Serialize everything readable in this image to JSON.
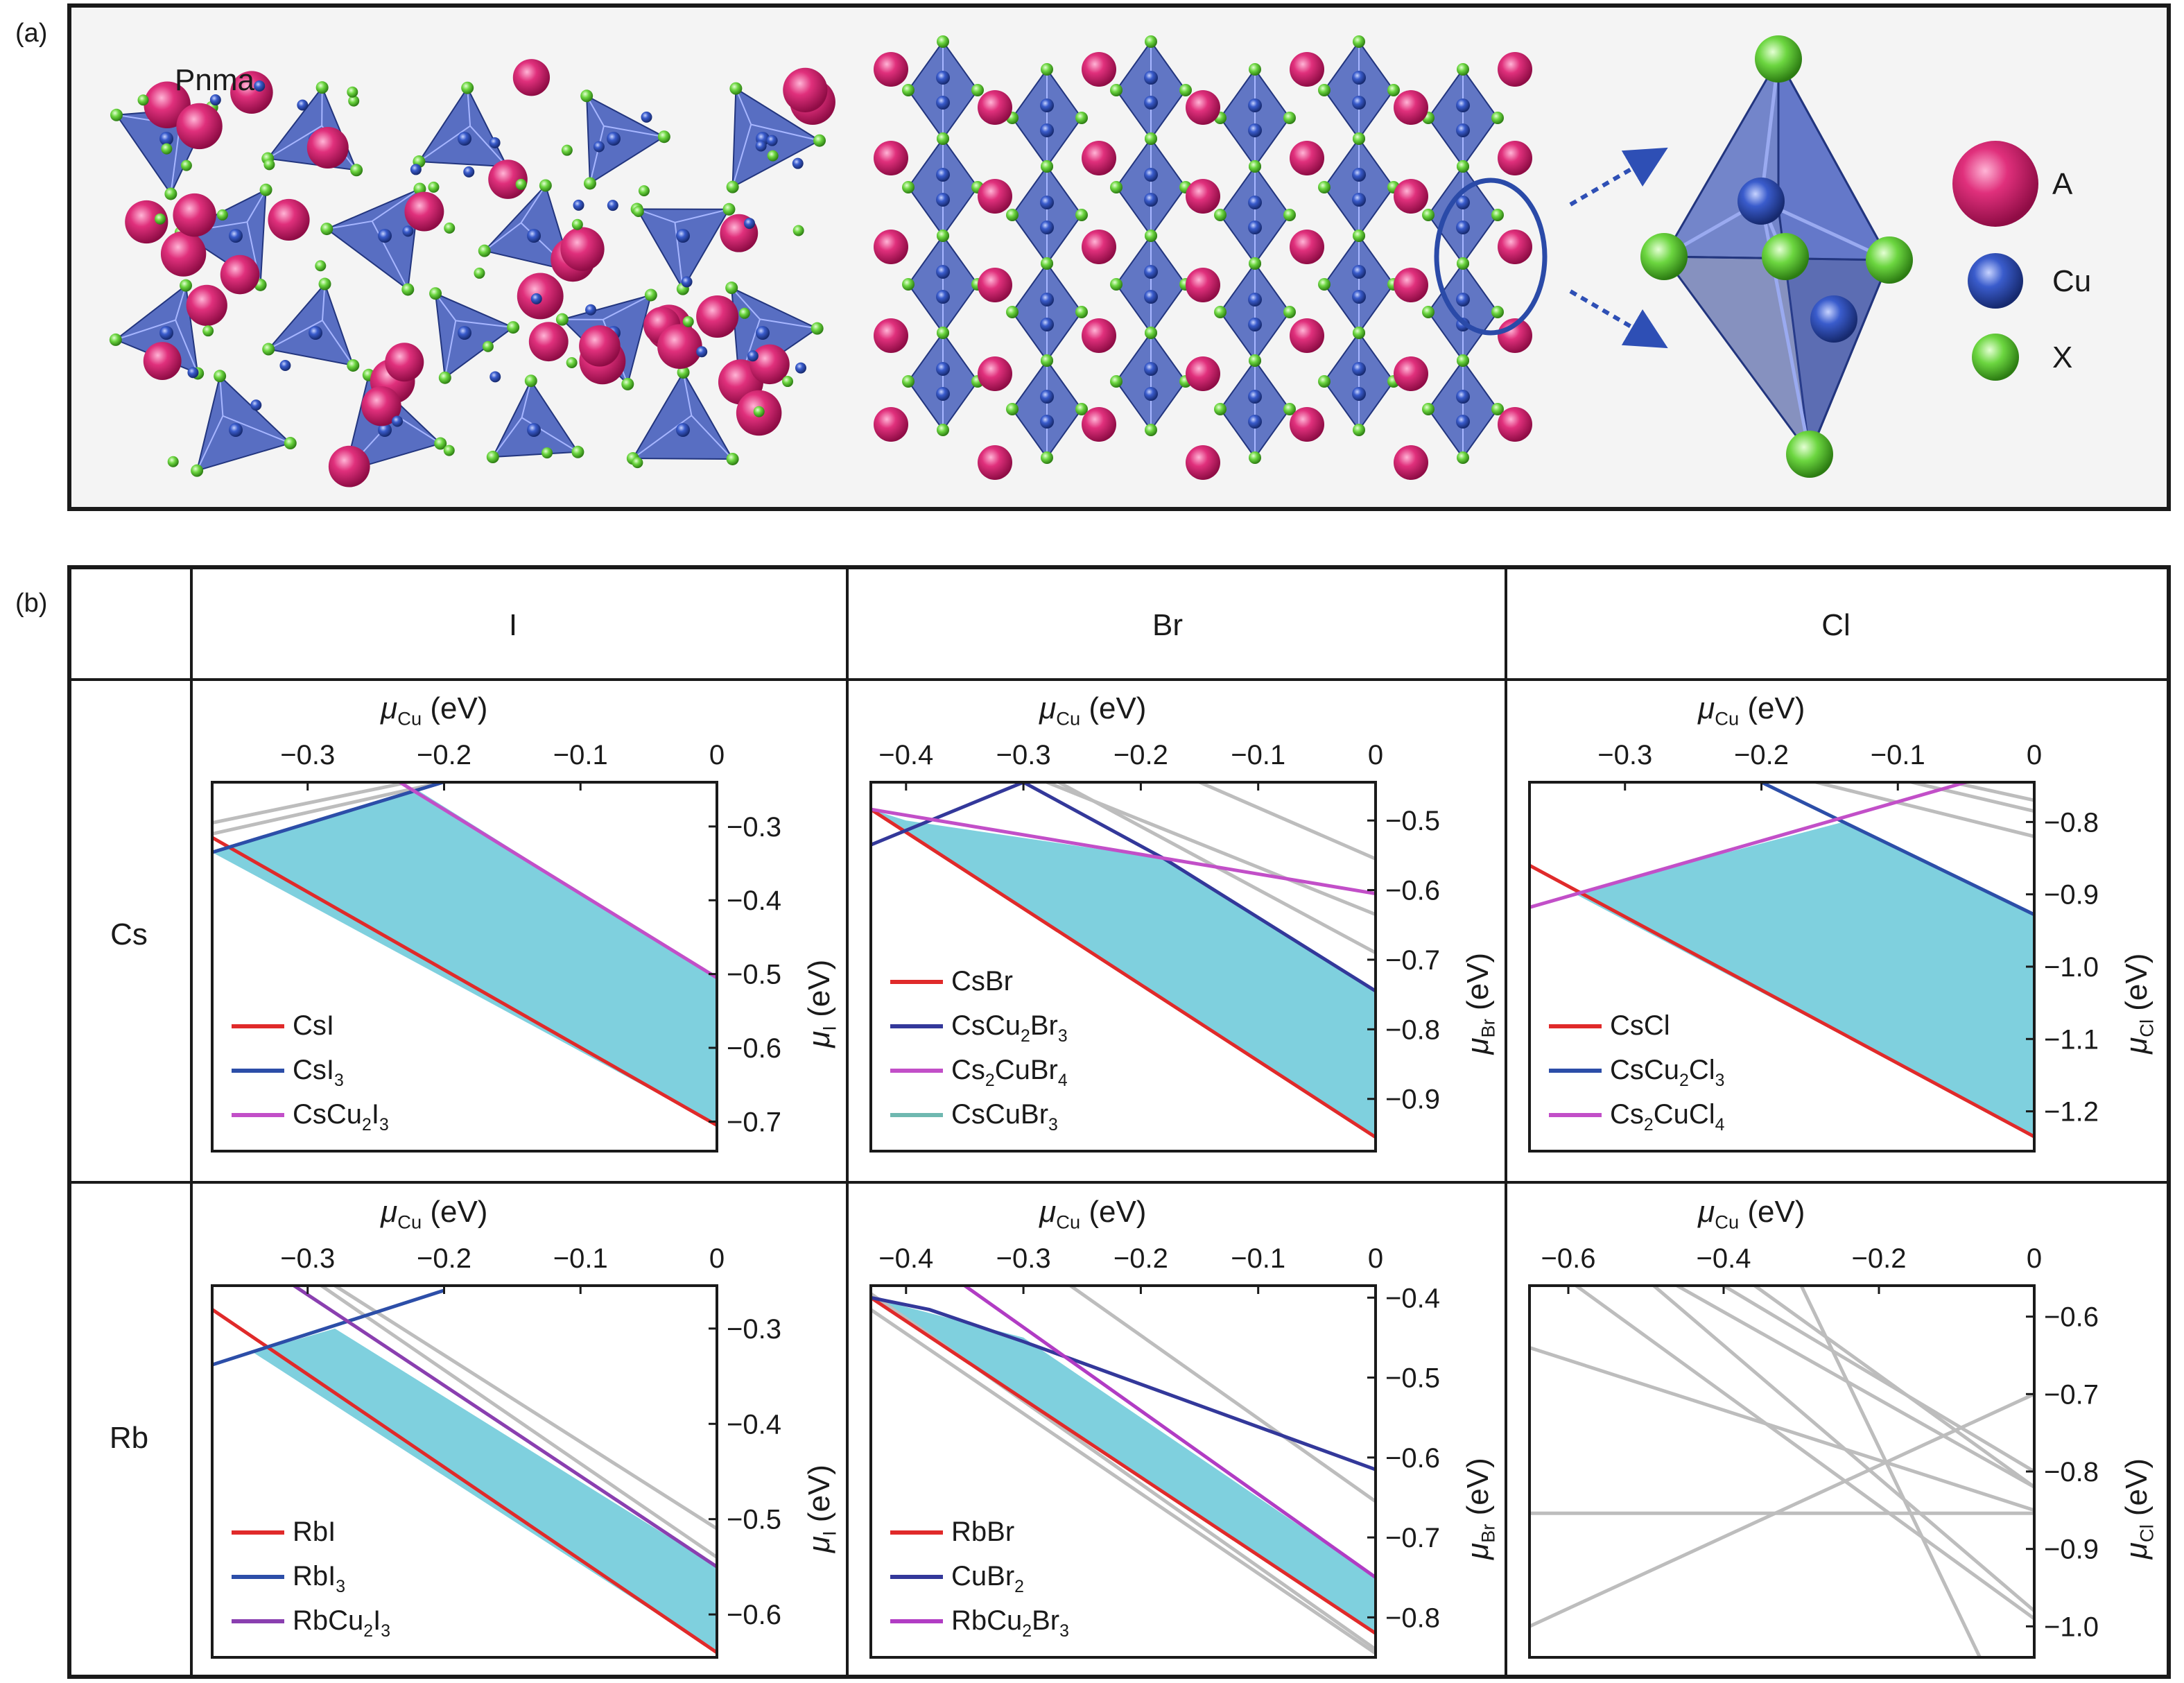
{
  "panel_a": {
    "label": "(a)",
    "space_group": "Pnma",
    "legend": [
      {
        "label": "A",
        "color": "#d6246e"
      },
      {
        "label": "Cu",
        "color": "#2e4fb5"
      },
      {
        "label": "X",
        "color": "#5fd23a"
      }
    ],
    "colors": {
      "polyhedron": "#3c56b8",
      "frame_bg": "#f4f4f4"
    }
  },
  "panel_b": {
    "label": "(b)",
    "columns": [
      "I",
      "Br",
      "Cl"
    ],
    "rows": [
      "Cs",
      "Rb"
    ],
    "fill_color": "#7fd0de"
  },
  "chart_data": [
    {
      "type": "area",
      "row": "Cs",
      "col": "I",
      "xlabel": {
        "sym": "μ",
        "sub": "Cu",
        "unit": " (eV)"
      },
      "ylabel": {
        "sym": "μ",
        "sub": "I",
        "unit": " (eV)"
      },
      "xlim": [
        -0.37,
        0
      ],
      "ylim": [
        -0.74,
        -0.24
      ],
      "xticks": [
        {
          "v": -0.3,
          "t": "−0.3"
        },
        {
          "v": -0.2,
          "t": "−0.2"
        },
        {
          "v": -0.1,
          "t": "−0.1"
        },
        {
          "v": 0,
          "t": "0"
        }
      ],
      "yticks": [
        {
          "v": -0.3,
          "t": "−0.3"
        },
        {
          "v": -0.4,
          "t": "−0.4"
        },
        {
          "v": -0.5,
          "t": "−0.5"
        },
        {
          "v": -0.6,
          "t": "−0.6"
        },
        {
          "v": -0.7,
          "t": "−0.7"
        }
      ],
      "region": [
        [
          -0.37,
          -0.335
        ],
        [
          -0.22,
          -0.25
        ],
        [
          0,
          -0.505
        ],
        [
          0,
          -0.705
        ]
      ],
      "series": [
        {
          "name": "CsI",
          "sub": "",
          "suffix": "",
          "color": "#e02a2a",
          "points": [
            [
              -0.37,
              -0.315
            ],
            [
              0,
              -0.705
            ]
          ]
        },
        {
          "name": "CsI",
          "sub": "3",
          "suffix": "",
          "color": "#2c4ea8",
          "points": [
            [
              -0.37,
              -0.335
            ],
            [
              -0.165,
              -0.22
            ]
          ]
        },
        {
          "name": "CsCu",
          "sub": "2",
          "suffix": "I",
          "sub2": "3",
          "color": "#c24fc8",
          "points": [
            [
              -0.25,
              -0.22
            ],
            [
              0,
              -0.505
            ]
          ]
        }
      ],
      "others": [
        [
          [
            -0.37,
            -0.31
          ],
          [
            -0.165,
            -0.225
          ]
        ],
        [
          [
            -0.37,
            -0.295
          ],
          [
            -0.2,
            -0.23
          ]
        ]
      ]
    },
    {
      "type": "area",
      "row": "Cs",
      "col": "Br",
      "xlabel": {
        "sym": "μ",
        "sub": "Cu",
        "unit": " (eV)"
      },
      "ylabel": {
        "sym": "μ",
        "sub": "Br",
        "unit": " (eV)"
      },
      "xlim": [
        -0.43,
        0
      ],
      "ylim": [
        -0.975,
        -0.445
      ],
      "xticks": [
        {
          "v": -0.4,
          "t": "−0.4"
        },
        {
          "v": -0.3,
          "t": "−0.3"
        },
        {
          "v": -0.2,
          "t": "−0.2"
        },
        {
          "v": -0.1,
          "t": "−0.1"
        },
        {
          "v": 0,
          "t": "0"
        }
      ],
      "yticks": [
        {
          "v": -0.5,
          "t": "−0.5"
        },
        {
          "v": -0.6,
          "t": "−0.6"
        },
        {
          "v": -0.7,
          "t": "−0.7"
        },
        {
          "v": -0.8,
          "t": "−0.8"
        },
        {
          "v": -0.9,
          "t": "−0.9"
        }
      ],
      "region": [
        [
          -0.43,
          -0.484
        ],
        [
          -0.4,
          -0.5
        ],
        [
          -0.18,
          -0.555
        ],
        [
          0,
          -0.745
        ],
        [
          0,
          -0.955
        ]
      ],
      "series": [
        {
          "name": "CsBr",
          "sub": "",
          "suffix": "",
          "color": "#e02a2a",
          "points": [
            [
              -0.43,
              -0.484
            ],
            [
              0,
              -0.955
            ]
          ]
        },
        {
          "name": "CsCu",
          "sub": "2",
          "suffix": "Br",
          "sub2": "3",
          "color": "#33389a",
          "points": [
            [
              -0.43,
              -0.535
            ],
            [
              -0.3,
              -0.445
            ],
            [
              -0.18,
              -0.555
            ],
            [
              0,
              -0.745
            ]
          ]
        },
        {
          "name": "Cs",
          "sub": "2",
          "suffix": "CuBr",
          "sub2": "4",
          "color": "#c24fc8",
          "points": [
            [
              -0.43,
              -0.484
            ],
            [
              0,
              -0.605
            ]
          ]
        },
        {
          "name": "CsCuBr",
          "sub": "3",
          "suffix": "",
          "color": "#6fb8b0",
          "points": []
        }
      ],
      "others": [
        [
          [
            -0.27,
            -0.445
          ],
          [
            0,
            -0.69
          ]
        ],
        [
          [
            -0.15,
            -0.445
          ],
          [
            0,
            -0.555
          ]
        ],
        [
          [
            -0.28,
            -0.445
          ],
          [
            0,
            -0.635
          ]
        ]
      ]
    },
    {
      "type": "area",
      "row": "Cs",
      "col": "Cl",
      "xlabel": {
        "sym": "μ",
        "sub": "Cu",
        "unit": " (eV)"
      },
      "ylabel": {
        "sym": "μ",
        "sub": "Cl",
        "unit": " (eV)"
      },
      "xlim": [
        -0.37,
        0
      ],
      "ylim": [
        -1.255,
        -0.745
      ],
      "xticks": [
        {
          "v": -0.3,
          "t": "−0.3"
        },
        {
          "v": -0.2,
          "t": "−0.2"
        },
        {
          "v": -0.1,
          "t": "−0.1"
        },
        {
          "v": 0,
          "t": "0"
        }
      ],
      "yticks": [
        {
          "v": -0.8,
          "t": "−0.8"
        },
        {
          "v": -0.9,
          "t": "−0.9"
        },
        {
          "v": -1.0,
          "t": "−1.0"
        },
        {
          "v": -1.1,
          "t": "−1.1"
        },
        {
          "v": -1.2,
          "t": "−1.2"
        }
      ],
      "region": [
        [
          -0.338,
          -0.898
        ],
        [
          -0.14,
          -0.8
        ],
        [
          0,
          -0.928
        ],
        [
          0,
          -1.235
        ]
      ],
      "series": [
        {
          "name": "CsCl",
          "sub": "",
          "suffix": "",
          "color": "#e02a2a",
          "points": [
            [
              -0.37,
              -0.86
            ],
            [
              0,
              -1.235
            ]
          ]
        },
        {
          "name": "CsCu",
          "sub": "2",
          "suffix": "Cl",
          "sub2": "3",
          "color": "#2c4ea8",
          "points": [
            [
              -0.2,
              -0.745
            ],
            [
              0,
              -0.928
            ]
          ]
        },
        {
          "name": "Cs",
          "sub": "2",
          "suffix": "CuCl",
          "sub2": "4",
          "color": "#c24fc8",
          "points": [
            [
              -0.37,
              -0.918
            ],
            [
              -0.05,
              -0.745
            ]
          ]
        }
      ],
      "others": [
        [
          [
            -0.16,
            -0.745
          ],
          [
            0,
            -0.82
          ]
        ],
        [
          [
            -0.09,
            -0.745
          ],
          [
            0,
            -0.785
          ]
        ],
        [
          [
            -0.06,
            -0.745
          ],
          [
            0,
            -0.77
          ]
        ]
      ]
    },
    {
      "type": "area",
      "row": "Rb",
      "col": "I",
      "xlabel": {
        "sym": "μ",
        "sub": "Cu",
        "unit": " (eV)"
      },
      "ylabel": {
        "sym": "μ",
        "sub": "I",
        "unit": " (eV)"
      },
      "xlim": [
        -0.37,
        0
      ],
      "ylim": [
        -0.645,
        -0.255
      ],
      "xticks": [
        {
          "v": -0.3,
          "t": "−0.3"
        },
        {
          "v": -0.2,
          "t": "−0.2"
        },
        {
          "v": -0.1,
          "t": "−0.1"
        },
        {
          "v": 0,
          "t": "0"
        }
      ],
      "yticks": [
        {
          "v": -0.3,
          "t": "−0.3"
        },
        {
          "v": -0.4,
          "t": "−0.4"
        },
        {
          "v": -0.5,
          "t": "−0.5"
        },
        {
          "v": -0.6,
          "t": "−0.6"
        }
      ],
      "region": [
        [
          -0.34,
          -0.325
        ],
        [
          -0.28,
          -0.3
        ],
        [
          0,
          -0.55
        ],
        [
          0,
          -0.64
        ]
      ],
      "series": [
        {
          "name": "RbI",
          "sub": "",
          "suffix": "",
          "color": "#e02a2a",
          "points": [
            [
              -0.37,
              -0.28
            ],
            [
              0,
              -0.64
            ]
          ]
        },
        {
          "name": "RbI",
          "sub": "3",
          "suffix": "",
          "color": "#2c4ea8",
          "points": [
            [
              -0.37,
              -0.338
            ],
            [
              -0.2,
              -0.26
            ]
          ]
        },
        {
          "name": "RbCu",
          "sub": "2",
          "suffix": "I",
          "sub2": "3",
          "color": "#8a3fb0",
          "points": [
            [
              -0.31,
              -0.255
            ],
            [
              0,
              -0.55
            ]
          ]
        }
      ],
      "others": [
        [
          [
            -0.28,
            -0.255
          ],
          [
            0,
            -0.51
          ]
        ],
        [
          [
            -0.29,
            -0.255
          ],
          [
            0,
            -0.54
          ]
        ]
      ]
    },
    {
      "type": "area",
      "row": "Rb",
      "col": "Br",
      "xlabel": {
        "sym": "μ",
        "sub": "Cu",
        "unit": " (eV)"
      },
      "ylabel": {
        "sym": "μ",
        "sub": "Br",
        "unit": " (eV)"
      },
      "xlim": [
        -0.43,
        0
      ],
      "ylim": [
        -0.85,
        -0.385
      ],
      "xticks": [
        {
          "v": -0.4,
          "t": "−0.4"
        },
        {
          "v": -0.3,
          "t": "−0.3"
        },
        {
          "v": -0.2,
          "t": "−0.2"
        },
        {
          "v": -0.1,
          "t": "−0.1"
        },
        {
          "v": 0,
          "t": "0"
        }
      ],
      "yticks": [
        {
          "v": -0.4,
          "t": "−0.4"
        },
        {
          "v": -0.5,
          "t": "−0.5"
        },
        {
          "v": -0.6,
          "t": "−0.6"
        },
        {
          "v": -0.7,
          "t": "−0.7"
        },
        {
          "v": -0.8,
          "t": "−0.8"
        }
      ],
      "region": [
        [
          -0.43,
          -0.4
        ],
        [
          -0.3,
          -0.45
        ],
        [
          0,
          -0.75
        ],
        [
          0,
          -0.82
        ]
      ],
      "series": [
        {
          "name": "RbBr",
          "sub": "",
          "suffix": "",
          "color": "#e02a2a",
          "points": [
            [
              -0.43,
              -0.4
            ],
            [
              0,
              -0.82
            ]
          ]
        },
        {
          "name": "CuBr",
          "sub": "2",
          "suffix": "",
          "color": "#33389a",
          "points": [
            [
              -0.43,
              -0.4
            ],
            [
              -0.38,
              -0.415
            ],
            [
              -0.3,
              -0.455
            ],
            [
              0,
              -0.615
            ]
          ]
        },
        {
          "name": "RbCu",
          "sub": "2",
          "suffix": "Br",
          "sub2": "3",
          "color": "#b13cc4",
          "points": [
            [
              -0.35,
              -0.385
            ],
            [
              0,
              -0.75
            ]
          ]
        }
      ],
      "others": [
        [
          [
            -0.43,
            -0.415
          ],
          [
            0,
            -0.845
          ]
        ],
        [
          [
            -0.26,
            -0.385
          ],
          [
            0,
            -0.655
          ]
        ],
        [
          [
            -0.43,
            -0.395
          ],
          [
            0,
            -0.84
          ]
        ]
      ]
    },
    {
      "type": "line",
      "row": "Rb",
      "col": "Cl",
      "xlabel": {
        "sym": "μ",
        "sub": "Cu",
        "unit": " (eV)"
      },
      "ylabel": {
        "sym": "μ",
        "sub": "Cl",
        "unit": " (eV)"
      },
      "xlim": [
        -0.65,
        0
      ],
      "ylim": [
        -1.04,
        -0.56
      ],
      "xticks": [
        {
          "v": -0.6,
          "t": "−0.6"
        },
        {
          "v": -0.4,
          "t": "−0.4"
        },
        {
          "v": -0.2,
          "t": "−0.2"
        },
        {
          "v": 0,
          "t": "0"
        }
      ],
      "yticks": [
        {
          "v": -0.6,
          "t": "−0.6"
        },
        {
          "v": -0.7,
          "t": "−0.7"
        },
        {
          "v": -0.8,
          "t": "−0.8"
        },
        {
          "v": -0.9,
          "t": "−0.9"
        },
        {
          "v": -1.0,
          "t": "−1.0"
        }
      ],
      "region": [],
      "series": [],
      "others": [
        [
          [
            -0.65,
            -0.854
          ],
          [
            0,
            -0.854
          ]
        ],
        [
          [
            -0.65,
            -1.0
          ],
          [
            0,
            -0.7
          ]
        ],
        [
          [
            -0.65,
            -0.64
          ],
          [
            0,
            -0.85
          ]
        ],
        [
          [
            -0.59,
            -0.56
          ],
          [
            0,
            -0.99
          ]
        ],
        [
          [
            -0.49,
            -0.56
          ],
          [
            0,
            -0.98
          ]
        ],
        [
          [
            -0.4,
            -0.56
          ],
          [
            0,
            -0.8
          ]
        ],
        [
          [
            -0.36,
            -0.56
          ],
          [
            0,
            -0.82
          ]
        ],
        [
          [
            -0.3,
            -0.56
          ],
          [
            -0.07,
            -1.04
          ]
        ],
        [
          [
            -0.46,
            -0.56
          ],
          [
            0,
            -0.82
          ]
        ]
      ]
    }
  ]
}
